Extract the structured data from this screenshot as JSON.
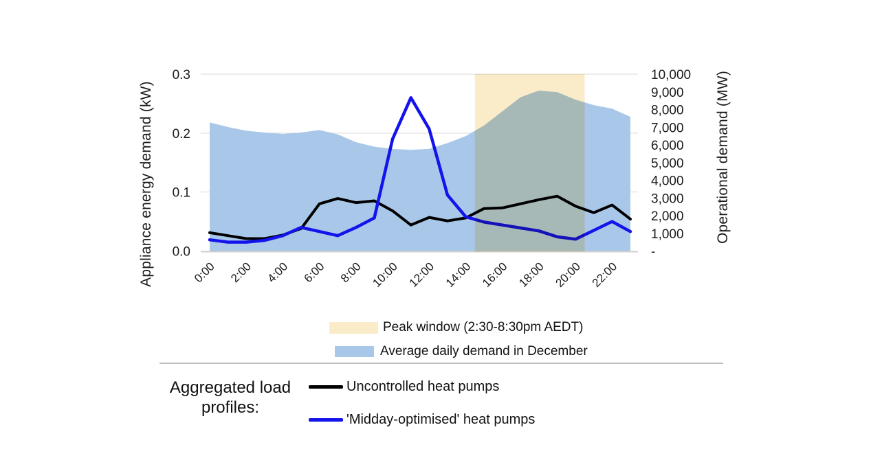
{
  "chart_data": {
    "type": "line",
    "subtype": "dual-axis combo: area (right axis) + two lines (left axis) + highlight band",
    "x": [
      0,
      1,
      2,
      3,
      4,
      5,
      6,
      7,
      8,
      9,
      10,
      11,
      12,
      13,
      14,
      15,
      16,
      17,
      18,
      19,
      20,
      21,
      22,
      23
    ],
    "x_tick_labels": [
      "0:00",
      "2:00",
      "4:00",
      "6:00",
      "8:00",
      "10:00",
      "12:00",
      "14:00",
      "16:00",
      "18:00",
      "20:00",
      "22:00"
    ],
    "left_axis": {
      "label": "Appliance energy demand (kW)",
      "range": [
        0,
        0.3
      ],
      "tick_labels": [
        "0.0",
        "0.1",
        "0.2",
        "0.3"
      ]
    },
    "right_axis": {
      "label": "Operational demand (MW)",
      "range": [
        0,
        10000
      ],
      "tick_labels": [
        "-",
        "1,000",
        "2,000",
        "3,000",
        "4,000",
        "5,000",
        "6,000",
        "7,000",
        "8,000",
        "9,000",
        "10,000"
      ]
    },
    "grid": "horizontal gridlines on left-axis ticks",
    "band": {
      "name": "Peak window (2:30-8:30pm AEDT)",
      "x_from": 14.5,
      "x_to": 20.5,
      "color": "#FAECC9"
    },
    "series": [
      {
        "name": "Average daily demand in December",
        "type": "area",
        "axis": "right",
        "color": "#A9C8E9",
        "values": [
          7270,
          7010,
          6800,
          6700,
          6620,
          6700,
          6840,
          6600,
          6150,
          5900,
          5770,
          5720,
          5780,
          6100,
          6500,
          7100,
          7900,
          8700,
          9070,
          8980,
          8560,
          8250,
          8050,
          7590
        ]
      },
      {
        "name": "Uncontrolled heat pumps",
        "type": "line",
        "axis": "left",
        "color": "#000000",
        "values": [
          0.031,
          0.026,
          0.021,
          0.021,
          0.027,
          0.038,
          0.08,
          0.089,
          0.082,
          0.085,
          0.068,
          0.044,
          0.057,
          0.051,
          0.056,
          0.072,
          0.073,
          0.08,
          0.087,
          0.093,
          0.076,
          0.065,
          0.078,
          0.054
        ]
      },
      {
        "name": "'Midday-optimised' heat pumps",
        "type": "line",
        "axis": "left",
        "color": "#1313EB",
        "values": [
          0.019,
          0.015,
          0.015,
          0.018,
          0.026,
          0.04,
          0.033,
          0.026,
          0.04,
          0.056,
          0.19,
          0.26,
          0.207,
          0.095,
          0.058,
          0.049,
          0.044,
          0.039,
          0.034,
          0.024,
          0.02,
          0.035,
          0.05,
          0.033
        ]
      }
    ],
    "gridline_color": "#D9D9D9",
    "axis_line_color": "#CFCFCF",
    "tick_text_color": "#1a1a1a"
  },
  "bottom_legend": {
    "title": "Aggregated load profiles:"
  }
}
